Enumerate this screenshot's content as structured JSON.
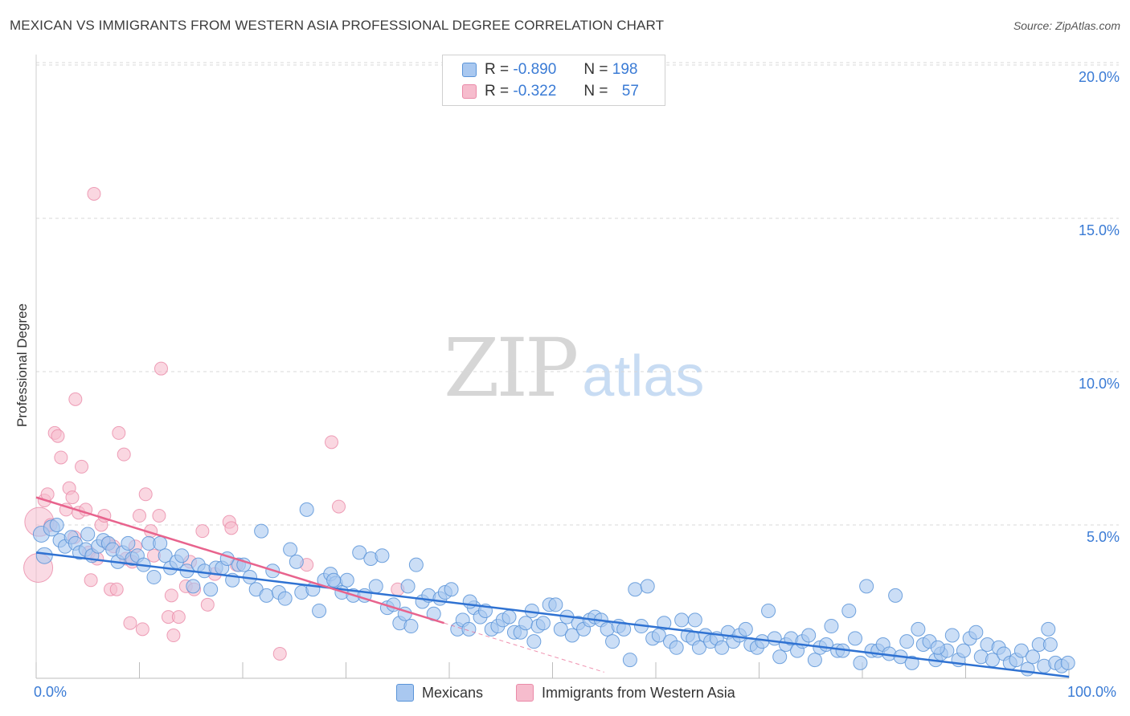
{
  "title": "MEXICAN VS IMMIGRANTS FROM WESTERN ASIA PROFESSIONAL DEGREE CORRELATION CHART",
  "source": "Source: ZipAtlas.com",
  "watermark": {
    "zip": "ZIP",
    "atlas": "atlas"
  },
  "legend": {
    "rows": [
      {
        "r_label": "R =",
        "r_value": "-0.890",
        "n_label": "N =",
        "n_value": "198"
      },
      {
        "r_label": "R =",
        "r_value": "-0.322",
        "n_label": "N =",
        "n_value": "57"
      }
    ]
  },
  "colors": {
    "blue_fill": "#a9c8f0",
    "blue_stroke": "#5a94d8",
    "blue_line": "#2f72d2",
    "pink_fill": "#f6bccd",
    "pink_stroke": "#ea8aa8",
    "pink_line": "#e8638d",
    "grid": "#d8d8d8",
    "tick_text": "#3a7bd5"
  },
  "chart_data": {
    "type": "scatter",
    "title": "MEXICAN VS IMMIGRANTS FROM WESTERN ASIA PROFESSIONAL DEGREE CORRELATION CHART",
    "xlabel": "",
    "ylabel": "Professional Degree",
    "xlim": [
      0,
      100
    ],
    "ylim": [
      0,
      21
    ],
    "x_tick_labels": [
      "0.0%",
      "100.0%"
    ],
    "y_ticks": [
      5,
      10,
      15,
      20
    ],
    "y_tick_labels": [
      "5.0%",
      "10.0%",
      "15.0%",
      "20.0%"
    ],
    "grid": true,
    "series": [
      {
        "name": "Mexicans",
        "color": "#a9c8f0",
        "r": -0.89,
        "n": 198,
        "trend": {
          "x": [
            0,
            100
          ],
          "y": [
            4.1,
            0.05
          ]
        },
        "points": [
          [
            0.5,
            4.7
          ],
          [
            0.8,
            4.0
          ],
          [
            1.5,
            4.9
          ],
          [
            2.0,
            5.0
          ],
          [
            2.3,
            4.5
          ],
          [
            2.8,
            4.3
          ],
          [
            3.4,
            4.6
          ],
          [
            3.8,
            4.4
          ],
          [
            4.2,
            4.1
          ],
          [
            4.8,
            4.2
          ],
          [
            5.0,
            4.7
          ],
          [
            5.4,
            4.0
          ],
          [
            6.0,
            4.3
          ],
          [
            6.5,
            4.5
          ],
          [
            7.0,
            4.4
          ],
          [
            7.4,
            4.2
          ],
          [
            7.9,
            3.8
          ],
          [
            8.4,
            4.1
          ],
          [
            8.9,
            4.4
          ],
          [
            9.3,
            3.9
          ],
          [
            9.8,
            4.0
          ],
          [
            10.4,
            3.7
          ],
          [
            10.9,
            4.4
          ],
          [
            11.4,
            3.3
          ],
          [
            12.0,
            4.4
          ],
          [
            12.5,
            4.0
          ],
          [
            13.0,
            3.6
          ],
          [
            13.6,
            3.8
          ],
          [
            14.1,
            4.0
          ],
          [
            14.6,
            3.5
          ],
          [
            15.2,
            3.0
          ],
          [
            15.7,
            3.7
          ],
          [
            16.3,
            3.5
          ],
          [
            16.9,
            2.9
          ],
          [
            17.4,
            3.6
          ],
          [
            18.0,
            3.6
          ],
          [
            18.5,
            3.9
          ],
          [
            19.0,
            3.2
          ],
          [
            19.6,
            3.7
          ],
          [
            20.1,
            3.7
          ],
          [
            20.7,
            3.3
          ],
          [
            21.3,
            2.9
          ],
          [
            21.8,
            4.8
          ],
          [
            22.3,
            2.7
          ],
          [
            22.9,
            3.5
          ],
          [
            23.5,
            2.8
          ],
          [
            24.1,
            2.6
          ],
          [
            24.6,
            4.2
          ],
          [
            25.2,
            3.8
          ],
          [
            25.7,
            2.8
          ],
          [
            26.2,
            5.5
          ],
          [
            26.8,
            2.9
          ],
          [
            27.4,
            2.2
          ],
          [
            27.9,
            3.2
          ],
          [
            28.5,
            3.4
          ],
          [
            29.0,
            3.1
          ],
          [
            29.6,
            2.8
          ],
          [
            30.1,
            3.2
          ],
          [
            30.7,
            2.7
          ],
          [
            31.3,
            4.1
          ],
          [
            31.8,
            2.7
          ],
          [
            32.4,
            3.9
          ],
          [
            32.9,
            3.0
          ],
          [
            33.5,
            4.0
          ],
          [
            34.0,
            2.3
          ],
          [
            34.6,
            2.4
          ],
          [
            35.2,
            1.8
          ],
          [
            35.7,
            2.1
          ],
          [
            36.3,
            1.7
          ],
          [
            36.8,
            3.7
          ],
          [
            37.4,
            2.5
          ],
          [
            38.0,
            2.7
          ],
          [
            38.5,
            2.1
          ],
          [
            39.1,
            2.6
          ],
          [
            39.6,
            2.8
          ],
          [
            40.2,
            2.9
          ],
          [
            40.8,
            1.6
          ],
          [
            41.3,
            1.9
          ],
          [
            41.9,
            1.6
          ],
          [
            42.4,
            2.3
          ],
          [
            43.0,
            2.0
          ],
          [
            43.5,
            2.2
          ],
          [
            44.1,
            1.6
          ],
          [
            44.7,
            1.7
          ],
          [
            45.2,
            1.9
          ],
          [
            45.8,
            2.0
          ],
          [
            46.3,
            1.5
          ],
          [
            46.9,
            1.5
          ],
          [
            47.4,
            1.8
          ],
          [
            48.0,
            2.2
          ],
          [
            48.6,
            1.7
          ],
          [
            49.1,
            1.8
          ],
          [
            49.7,
            2.4
          ],
          [
            50.3,
            2.4
          ],
          [
            50.8,
            1.6
          ],
          [
            51.4,
            2.0
          ],
          [
            51.9,
            1.4
          ],
          [
            52.5,
            1.8
          ],
          [
            53.0,
            1.6
          ],
          [
            53.6,
            1.9
          ],
          [
            54.1,
            2.0
          ],
          [
            54.7,
            1.9
          ],
          [
            55.3,
            1.6
          ],
          [
            55.8,
            1.2
          ],
          [
            56.4,
            1.7
          ],
          [
            56.9,
            1.6
          ],
          [
            57.5,
            0.6
          ],
          [
            58.0,
            2.9
          ],
          [
            58.6,
            1.7
          ],
          [
            59.2,
            3.0
          ],
          [
            59.7,
            1.3
          ],
          [
            60.3,
            1.4
          ],
          [
            60.8,
            1.8
          ],
          [
            61.4,
            1.2
          ],
          [
            62.0,
            1.0
          ],
          [
            62.5,
            1.9
          ],
          [
            63.1,
            1.4
          ],
          [
            63.6,
            1.3
          ],
          [
            64.2,
            1.0
          ],
          [
            64.8,
            1.4
          ],
          [
            65.3,
            1.2
          ],
          [
            65.9,
            1.3
          ],
          [
            66.4,
            1.0
          ],
          [
            67.0,
            1.5
          ],
          [
            67.5,
            1.2
          ],
          [
            68.1,
            1.4
          ],
          [
            68.7,
            1.6
          ],
          [
            69.2,
            1.1
          ],
          [
            69.8,
            1.0
          ],
          [
            70.3,
            1.2
          ],
          [
            70.9,
            2.2
          ],
          [
            71.5,
            1.3
          ],
          [
            72.0,
            0.7
          ],
          [
            72.6,
            1.1
          ],
          [
            73.1,
            1.3
          ],
          [
            73.7,
            0.9
          ],
          [
            74.2,
            1.2
          ],
          [
            74.8,
            1.4
          ],
          [
            75.4,
            0.6
          ],
          [
            75.9,
            1.0
          ],
          [
            76.5,
            1.1
          ],
          [
            77.0,
            1.7
          ],
          [
            77.6,
            0.9
          ],
          [
            78.1,
            0.9
          ],
          [
            78.7,
            2.2
          ],
          [
            79.3,
            1.3
          ],
          [
            79.8,
            0.5
          ],
          [
            80.4,
            3.0
          ],
          [
            80.9,
            0.9
          ],
          [
            81.5,
            0.9
          ],
          [
            82.0,
            1.1
          ],
          [
            82.6,
            0.8
          ],
          [
            83.2,
            2.7
          ],
          [
            83.7,
            0.7
          ],
          [
            84.3,
            1.2
          ],
          [
            84.8,
            0.5
          ],
          [
            85.4,
            1.6
          ],
          [
            85.9,
            1.1
          ],
          [
            86.5,
            1.2
          ],
          [
            87.1,
            0.6
          ],
          [
            87.6,
            0.8
          ],
          [
            88.2,
            0.9
          ],
          [
            88.7,
            1.4
          ],
          [
            89.3,
            0.6
          ],
          [
            89.8,
            0.9
          ],
          [
            90.4,
            1.3
          ],
          [
            91.0,
            1.5
          ],
          [
            91.5,
            0.7
          ],
          [
            92.1,
            1.1
          ],
          [
            92.6,
            0.6
          ],
          [
            93.2,
            1.0
          ],
          [
            93.7,
            0.8
          ],
          [
            94.3,
            0.5
          ],
          [
            94.9,
            0.6
          ],
          [
            95.4,
            0.9
          ],
          [
            96.0,
            0.3
          ],
          [
            96.5,
            0.7
          ],
          [
            97.1,
            1.1
          ],
          [
            97.6,
            0.4
          ],
          [
            98.2,
            1.1
          ],
          [
            98.7,
            0.5
          ],
          [
            99.3,
            0.4
          ],
          [
            99.9,
            0.5
          ],
          [
            28.8,
            3.2
          ],
          [
            36.0,
            3.0
          ],
          [
            42.0,
            2.5
          ],
          [
            48.2,
            1.2
          ],
          [
            63.8,
            1.9
          ],
          [
            87.3,
            1.0
          ],
          [
            98.0,
            1.6
          ]
        ]
      },
      {
        "name": "Immigrants from Western Asia",
        "color": "#f6bccd",
        "r": -0.322,
        "n": 57,
        "trend": {
          "x": [
            0,
            39.5
          ],
          "y": [
            5.9,
            1.8
          ]
        },
        "trend_ext": {
          "x": [
            39.5,
            55
          ],
          "y": [
            1.8,
            0.2
          ]
        },
        "points": [
          [
            0.2,
            3.6
          ],
          [
            0.3,
            5.1
          ],
          [
            0.8,
            5.8
          ],
          [
            1.1,
            6.0
          ],
          [
            1.4,
            5.0
          ],
          [
            1.8,
            8.0
          ],
          [
            2.1,
            7.9
          ],
          [
            2.4,
            7.2
          ],
          [
            2.9,
            5.5
          ],
          [
            3.2,
            6.2
          ],
          [
            3.5,
            5.9
          ],
          [
            3.7,
            4.6
          ],
          [
            3.8,
            9.1
          ],
          [
            4.1,
            5.4
          ],
          [
            4.4,
            6.9
          ],
          [
            4.8,
            5.5
          ],
          [
            5.1,
            4.1
          ],
          [
            5.3,
            3.2
          ],
          [
            5.6,
            15.8
          ],
          [
            5.9,
            3.9
          ],
          [
            6.3,
            5.0
          ],
          [
            6.6,
            5.3
          ],
          [
            6.9,
            4.4
          ],
          [
            7.2,
            2.9
          ],
          [
            7.5,
            4.3
          ],
          [
            7.8,
            2.9
          ],
          [
            8.0,
            8.0
          ],
          [
            8.5,
            7.3
          ],
          [
            8.7,
            3.9
          ],
          [
            9.1,
            1.8
          ],
          [
            9.6,
            4.3
          ],
          [
            10.0,
            5.3
          ],
          [
            10.3,
            1.6
          ],
          [
            10.6,
            6.0
          ],
          [
            11.1,
            4.8
          ],
          [
            11.4,
            4.0
          ],
          [
            11.9,
            5.3
          ],
          [
            12.1,
            10.1
          ],
          [
            12.8,
            2.0
          ],
          [
            13.1,
            2.7
          ],
          [
            13.3,
            1.4
          ],
          [
            13.8,
            2.0
          ],
          [
            14.5,
            3.0
          ],
          [
            14.9,
            3.8
          ],
          [
            15.3,
            2.9
          ],
          [
            16.1,
            4.8
          ],
          [
            16.6,
            2.4
          ],
          [
            17.3,
            3.4
          ],
          [
            18.7,
            5.1
          ],
          [
            18.9,
            4.9
          ],
          [
            19.4,
            3.7
          ],
          [
            23.6,
            0.8
          ],
          [
            26.2,
            3.7
          ],
          [
            28.6,
            7.7
          ],
          [
            29.3,
            5.6
          ],
          [
            35.0,
            2.9
          ],
          [
            9.3,
            3.8
          ]
        ]
      }
    ]
  },
  "bottom_legend": [
    {
      "label": "Mexicans"
    },
    {
      "label": "Immigrants from Western Asia"
    }
  ]
}
